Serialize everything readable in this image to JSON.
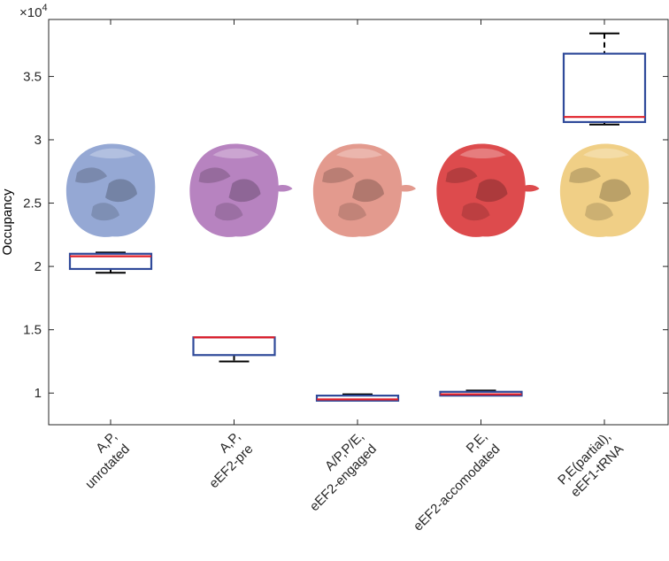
{
  "chart_data": {
    "type": "box",
    "ylabel": "Occupancy",
    "y_exponent_label": "×10",
    "y_exponent_power": "4",
    "ylim": [
      7500,
      39500
    ],
    "yticks": [
      10000,
      15000,
      20000,
      25000,
      30000,
      35000
    ],
    "ytick_labels": [
      "1",
      "1.5",
      "2",
      "2.5",
      "3",
      "3.5"
    ],
    "categories": [
      [
        "A,P,",
        "unrotated"
      ],
      [
        "A,P,",
        "eEF2-pre"
      ],
      [
        "A/P,P/E,",
        "eEF2-engaged"
      ],
      [
        "P,E,",
        "eEF2-accomodated"
      ],
      [
        "P,E(partial),",
        "eEF1-tRNA"
      ]
    ],
    "boxes": [
      {
        "whisker_low": 19500,
        "q1": 19800,
        "median": 20800,
        "q3": 21000,
        "whisker_high": 21100
      },
      {
        "whisker_low": 12500,
        "q1": 13000,
        "median": 14400,
        "q3": 14400,
        "whisker_high": 14400
      },
      {
        "whisker_low": 9400,
        "q1": 9400,
        "median": 9500,
        "q3": 9800,
        "whisker_high": 9900
      },
      {
        "whisker_low": 9800,
        "q1": 9800,
        "median": 9900,
        "q3": 10100,
        "whisker_high": 10200
      },
      {
        "whisker_low": 31200,
        "q1": 31400,
        "median": 31800,
        "q3": 36800,
        "whisker_high": 38400
      }
    ],
    "structure_image_colors": [
      "#95a8d4",
      "#b783c0",
      "#e39a8e",
      "#dd4b4d",
      "#f0cf86"
    ],
    "box_color": "#2f4a9a",
    "median_color": "#e0202a",
    "whisker_color": "#000000",
    "grid": false
  }
}
